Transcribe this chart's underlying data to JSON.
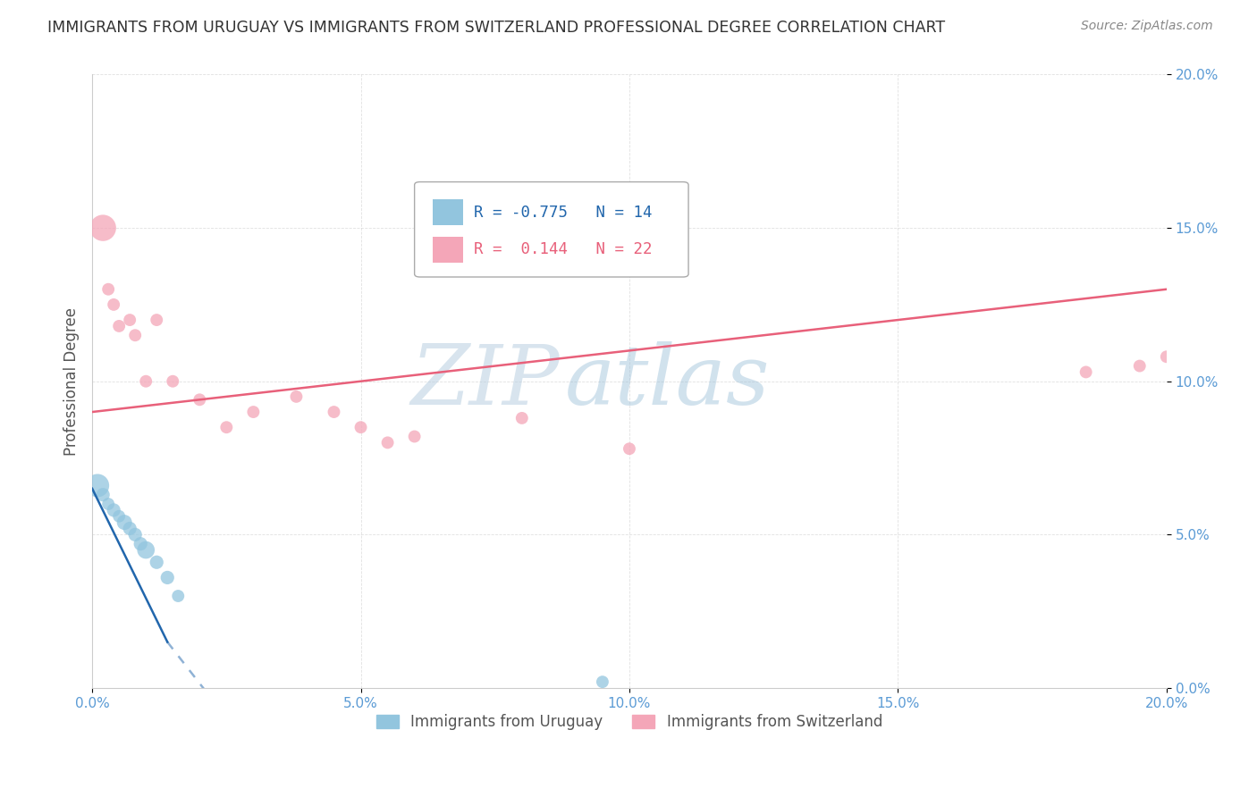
{
  "title": "IMMIGRANTS FROM URUGUAY VS IMMIGRANTS FROM SWITZERLAND PROFESSIONAL DEGREE CORRELATION CHART",
  "source": "Source: ZipAtlas.com",
  "ylabel": "Professional Degree",
  "legend_label_blue": "Immigrants from Uruguay",
  "legend_label_pink": "Immigrants from Switzerland",
  "watermark_zip": "ZIP",
  "watermark_atlas": "atlas",
  "xlim": [
    0,
    0.2
  ],
  "ylim": [
    0,
    0.2
  ],
  "x_ticks": [
    0.0,
    0.05,
    0.1,
    0.15,
    0.2
  ],
  "y_ticks": [
    0.0,
    0.05,
    0.1,
    0.15,
    0.2
  ],
  "blue_color": "#92c5de",
  "pink_color": "#f4a6b8",
  "blue_line_color": "#2166ac",
  "pink_line_color": "#e8607a",
  "r_blue": -0.775,
  "n_blue": 14,
  "r_pink": 0.144,
  "n_pink": 22,
  "blue_x": [
    0.001,
    0.002,
    0.003,
    0.004,
    0.005,
    0.006,
    0.007,
    0.008,
    0.009,
    0.01,
    0.012,
    0.014,
    0.016,
    0.095
  ],
  "blue_y": [
    0.066,
    0.063,
    0.06,
    0.058,
    0.056,
    0.054,
    0.052,
    0.05,
    0.047,
    0.045,
    0.041,
    0.036,
    0.03,
    0.002
  ],
  "blue_sizes": [
    350,
    120,
    100,
    120,
    100,
    150,
    120,
    120,
    120,
    200,
    120,
    120,
    100,
    100
  ],
  "pink_x": [
    0.002,
    0.003,
    0.004,
    0.005,
    0.007,
    0.008,
    0.01,
    0.012,
    0.015,
    0.02,
    0.025,
    0.03,
    0.038,
    0.045,
    0.05,
    0.055,
    0.06,
    0.08,
    0.1,
    0.185,
    0.195,
    0.2
  ],
  "pink_y": [
    0.15,
    0.13,
    0.125,
    0.118,
    0.12,
    0.115,
    0.1,
    0.12,
    0.1,
    0.094,
    0.085,
    0.09,
    0.095,
    0.09,
    0.085,
    0.08,
    0.082,
    0.088,
    0.078,
    0.103,
    0.105,
    0.108
  ],
  "pink_sizes": [
    450,
    100,
    100,
    100,
    100,
    100,
    100,
    100,
    100,
    100,
    100,
    100,
    100,
    100,
    100,
    100,
    100,
    100,
    100,
    100,
    100,
    100
  ],
  "background_color": "#ffffff",
  "grid_color": "#cccccc"
}
